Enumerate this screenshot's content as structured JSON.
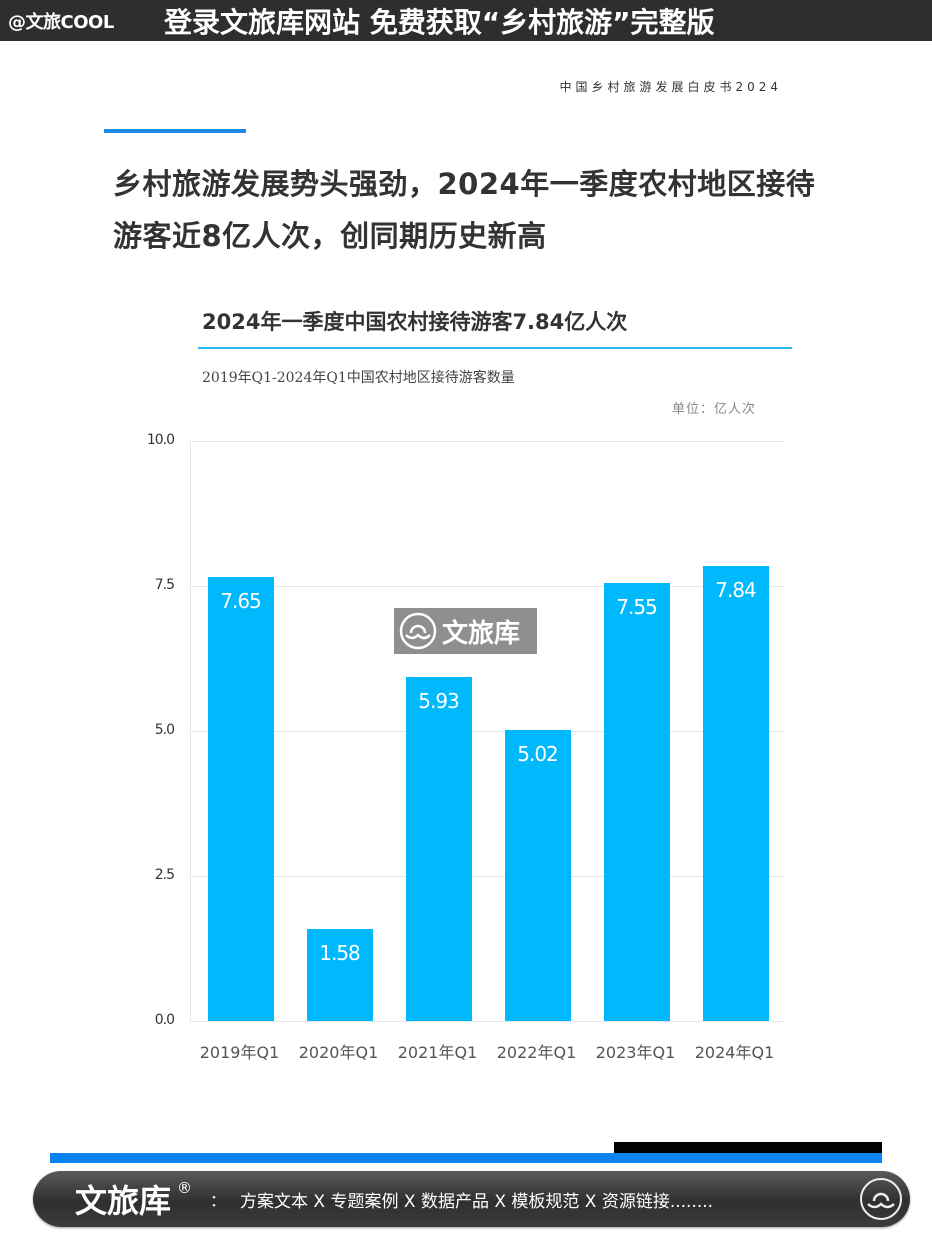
{
  "banner": {
    "handle": "@文旅COOL",
    "text": "登录文旅库网站 免费获取“乡村旅游”完整版"
  },
  "document": {
    "header": "中国乡村旅游发展白皮书2024",
    "headline": "乡村旅游发展势头强劲，2024年一季度农村地区接待游客近8亿人次，创同期历史新高"
  },
  "watermark": {
    "icon": "wenlvku-logo-icon",
    "text": "文旅库"
  },
  "footer": {
    "brand": "文旅库",
    "registered": "®",
    "colon": "：",
    "items": "方案文本 X 专题案例 X 数据产品 X 模板规范 X 资源链接........",
    "icon": "wenlvku-logo-icon"
  },
  "colors": {
    "bar": "#00b8fc",
    "accent_blue": "#1e88e5",
    "title_rule": "#29b6f6",
    "banner_bg": "#2e2e30"
  },
  "chart_data": {
    "type": "bar",
    "title": "2024年一季度中国农村接待游客7.84亿人次",
    "subtitle": "2019年Q1-2024年Q1中国农村地区接待游客数量",
    "unit": "单位：亿人次",
    "xlabel": "",
    "ylabel": "亿人次",
    "categories": [
      "2019年Q1",
      "2020年Q1",
      "2021年Q1",
      "2022年Q1",
      "2023年Q1",
      "2024年Q1"
    ],
    "values": [
      7.65,
      1.58,
      5.93,
      5.02,
      7.55,
      7.84
    ],
    "value_labels": [
      "7.65",
      "1.58",
      "5.93",
      "5.02",
      "7.55",
      "7.84"
    ],
    "yticks": [
      "10.0",
      "7.5",
      "5.0",
      "2.5",
      "0.0"
    ],
    "ylim": [
      0,
      10
    ],
    "grid": true,
    "legend": null,
    "data_labels": "inside-top"
  }
}
